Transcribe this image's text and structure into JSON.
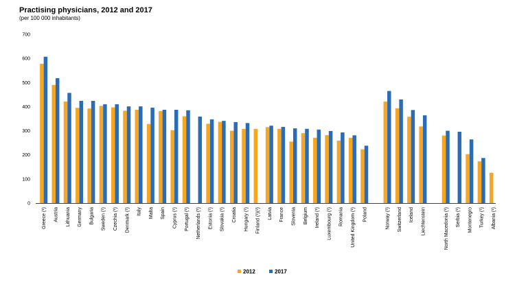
{
  "chart_data": {
    "type": "bar",
    "title": "Practising physicians, 2012 and 2017",
    "subtitle": "(per 100 000 inhabitants)",
    "xlabel": "",
    "ylabel": "",
    "ylim": [
      0,
      700
    ],
    "yticks": [
      0,
      100,
      200,
      300,
      400,
      500,
      600,
      700
    ],
    "grid": false,
    "legend": "bottom",
    "colors": {
      "2012": "#f5a623",
      "2017": "#2a6cb5"
    },
    "groups": [
      [
        "Greece (¹)",
        "Austria",
        "Lithuania",
        "Germany",
        "Bulgaria",
        "Sweden (¹)",
        "Czechia (¹)",
        "Denmark (¹)",
        "Italy",
        "Malta",
        "Spain",
        "Cyprus (¹)",
        "Portugal (¹)",
        "Netherlands (¹)",
        "Estonia (¹)",
        "Slovakia (¹)",
        "Croatia",
        "Hungary (¹)",
        "Finland (¹)(²)",
        "Latvia",
        "France",
        "Slovenia",
        "Belgium",
        "Ireland (¹)",
        "Luxembourg (¹)",
        "Romania",
        "United Kingdom (¹)",
        "Poland"
      ],
      [
        "Norway (¹)",
        "Switzerland",
        "Iceland",
        "Liechtenstein"
      ],
      [
        "North Macedonia (¹)",
        "Serbia (¹)",
        "Montenegro",
        "Turkey (¹)",
        "Albania (¹)"
      ]
    ],
    "categories": [
      "Greece (¹)",
      "Austria",
      "Lithuania",
      "Germany",
      "Bulgaria",
      "Sweden (¹)",
      "Czechia (¹)",
      "Denmark (¹)",
      "Italy",
      "Malta",
      "Spain",
      "Cyprus (¹)",
      "Portugal (¹)",
      "Netherlands (¹)",
      "Estonia (¹)",
      "Slovakia (¹)",
      "Croatia",
      "Hungary (¹)",
      "Finland (¹)(²)",
      "Latvia",
      "France",
      "Slovenia",
      "Belgium",
      "Ireland (¹)",
      "Luxembourg (¹)",
      "Romania",
      "United Kingdom (¹)",
      "Poland",
      "Norway (¹)",
      "Switzerland",
      "Iceland",
      "Liechtenstein",
      "North Macedonia (¹)",
      "Serbia (¹)",
      "Montenegro",
      "Turkey (¹)",
      "Albania (¹)"
    ],
    "series": [
      {
        "name": "2012",
        "values": [
          578,
          490,
          421,
          395,
          392,
          403,
          397,
          383,
          387,
          328,
          382,
          302,
          360,
          null,
          329,
          337,
          300,
          308,
          308,
          315,
          308,
          255,
          290,
          271,
          282,
          259,
          271,
          223,
          421,
          393,
          358,
          318,
          280,
          null,
          203,
          173,
          126
        ]
      },
      {
        "name": "2017",
        "values": [
          607,
          518,
          457,
          424,
          424,
          410,
          410,
          401,
          401,
          396,
          387,
          387,
          385,
          359,
          347,
          341,
          336,
          332,
          null,
          321,
          316,
          310,
          308,
          305,
          299,
          293,
          281,
          238,
          465,
          430,
          386,
          364,
          300,
          296,
          264,
          187,
          null
        ]
      }
    ]
  }
}
